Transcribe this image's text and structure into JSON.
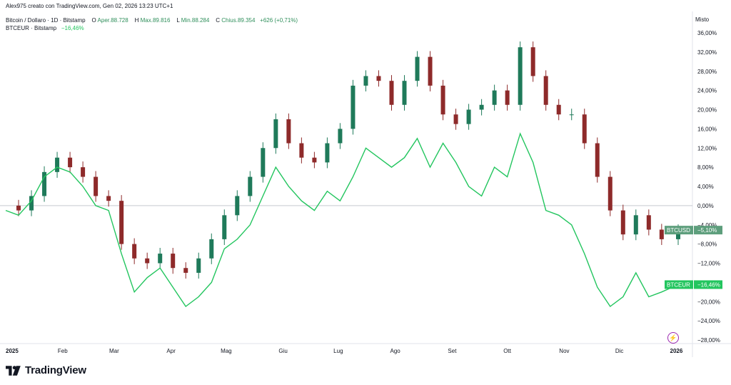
{
  "header": {
    "credit": "Alex975 creato con TradingView.com, Gen 02, 2026 13:23 UTC+1",
    "symbol": "Bitcoin / Dollaro · 1D · Bitstamp",
    "open_label": "O",
    "open_value": "Aper.88.728",
    "high_label": "H",
    "high_value": "Max.89.816",
    "low_label": "L",
    "low_value": "Min.88.284",
    "close_label": "C",
    "close_value": "Chius.89.354",
    "change_value": "+626 (+0,71%)",
    "compare_symbol": "BTCEUR · Bitstamp",
    "compare_change": "−16,46%"
  },
  "price_scale_mode": "Misto",
  "branding": {
    "logo_text": "TradingView",
    "icon": "tradingview-logo-icon"
  },
  "bolt_icon": "lightning-icon",
  "colors": {
    "up": "#1f7a5a",
    "down": "#8e2a2a",
    "eur_line": "#22c55e",
    "usd_label_bg": "#5d9e7c",
    "eur_label_bg": "#22c55e",
    "zero_line": "#c7c9cf"
  },
  "chart_data": {
    "type": "line",
    "title": "Bitcoin / Dollaro · 1D · Bitstamp",
    "y_unit": "%",
    "ylim": [
      -28,
      36
    ],
    "y_ticks": [
      36,
      32,
      28,
      24,
      20,
      16,
      12,
      8,
      4,
      0,
      -4,
      -8,
      -12,
      -16,
      -20,
      -24,
      -28
    ],
    "y_tick_labels": [
      "36,00%",
      "32,00%",
      "28,00%",
      "24,00%",
      "20,00%",
      "16,00%",
      "12,00%",
      "8,00%",
      "4,00%",
      "0,00%",
      "−4,00%",
      "−8,00%",
      "−12,00%",
      "−16,00%",
      "−20,00%",
      "−24,00%",
      "−28,00%"
    ],
    "x_ticks": [
      "2025-01-01",
      "2025-02-01",
      "2025-03-01",
      "2025-04-01",
      "2025-05-01",
      "2025-06-01",
      "2025-07-01",
      "2025-08-01",
      "2025-09-01",
      "2025-10-01",
      "2025-11-01",
      "2025-12-01",
      "2026-01-01"
    ],
    "x_tick_labels": [
      "2025",
      "Feb",
      "Mar",
      "Apr",
      "Mag",
      "Giu",
      "Lug",
      "Ago",
      "Set",
      "Ott",
      "Nov",
      "Dic",
      "2026"
    ],
    "x_range": [
      "2025-01-01",
      "2026-01-02"
    ],
    "grid": false,
    "series": [
      {
        "name": "BTCUSD",
        "kind": "candlestick",
        "last_label": "BTCUSD",
        "last_value_label": "−5,10%",
        "last_value": -5.1,
        "x": [
          "2025-01-01",
          "2025-01-08",
          "2025-01-15",
          "2025-01-22",
          "2025-01-29",
          "2025-02-05",
          "2025-02-12",
          "2025-02-19",
          "2025-02-26",
          "2025-03-05",
          "2025-03-12",
          "2025-03-19",
          "2025-03-26",
          "2025-04-02",
          "2025-04-09",
          "2025-04-16",
          "2025-04-23",
          "2025-04-30",
          "2025-05-07",
          "2025-05-14",
          "2025-05-21",
          "2025-05-28",
          "2025-06-04",
          "2025-06-11",
          "2025-06-18",
          "2025-06-25",
          "2025-07-02",
          "2025-07-09",
          "2025-07-16",
          "2025-07-23",
          "2025-07-30",
          "2025-08-06",
          "2025-08-13",
          "2025-08-20",
          "2025-08-27",
          "2025-09-03",
          "2025-09-10",
          "2025-09-17",
          "2025-09-24",
          "2025-10-01",
          "2025-10-08",
          "2025-10-15",
          "2025-10-22",
          "2025-10-29",
          "2025-11-05",
          "2025-11-12",
          "2025-11-19",
          "2025-11-26",
          "2025-12-03",
          "2025-12-10",
          "2025-12-17",
          "2025-12-24",
          "2026-01-02"
        ],
        "y": [
          0,
          -1,
          2,
          7,
          10,
          8,
          6,
          2,
          1,
          -8,
          -11,
          -12,
          -10,
          -13,
          -14,
          -11,
          -7,
          -2,
          2,
          6,
          12,
          18,
          13,
          10,
          9,
          13,
          16,
          25,
          27,
          26,
          21,
          26,
          31,
          25,
          19,
          17,
          20,
          21,
          24,
          21,
          33,
          27,
          21,
          19,
          19,
          13,
          6,
          -1,
          -6,
          -2,
          -5,
          -7,
          -5.1
        ]
      },
      {
        "name": "BTCEUR",
        "kind": "line",
        "last_label": "BTCEUR",
        "last_value_label": "−16,46%",
        "last_value": -16.46,
        "x": [
          "2025-01-01",
          "2025-01-08",
          "2025-01-15",
          "2025-01-22",
          "2025-01-29",
          "2025-02-05",
          "2025-02-12",
          "2025-02-19",
          "2025-02-26",
          "2025-03-05",
          "2025-03-12",
          "2025-03-19",
          "2025-03-26",
          "2025-04-02",
          "2025-04-09",
          "2025-04-16",
          "2025-04-23",
          "2025-04-30",
          "2025-05-07",
          "2025-05-14",
          "2025-05-21",
          "2025-05-28",
          "2025-06-04",
          "2025-06-11",
          "2025-06-18",
          "2025-06-25",
          "2025-07-02",
          "2025-07-09",
          "2025-07-16",
          "2025-07-23",
          "2025-07-30",
          "2025-08-06",
          "2025-08-13",
          "2025-08-20",
          "2025-08-27",
          "2025-09-03",
          "2025-09-10",
          "2025-09-17",
          "2025-09-24",
          "2025-10-01",
          "2025-10-08",
          "2025-10-15",
          "2025-10-22",
          "2025-10-29",
          "2025-11-05",
          "2025-11-12",
          "2025-11-19",
          "2025-11-26",
          "2025-12-03",
          "2025-12-10",
          "2025-12-17",
          "2025-12-24",
          "2026-01-02"
        ],
        "y": [
          -1,
          -2,
          1,
          6,
          8,
          7,
          4,
          0,
          -1,
          -10,
          -18,
          -15,
          -13,
          -17,
          -21,
          -19,
          -16,
          -9,
          -7,
          -4,
          2,
          8,
          4,
          1,
          -1,
          3,
          1,
          6,
          12,
          10,
          8,
          10,
          14,
          8,
          13,
          9,
          4,
          2,
          8,
          6,
          15,
          9,
          -1,
          -2,
          -4,
          -10,
          -17,
          -21,
          -19,
          -14,
          -19,
          -18,
          -16.46
        ]
      }
    ]
  }
}
